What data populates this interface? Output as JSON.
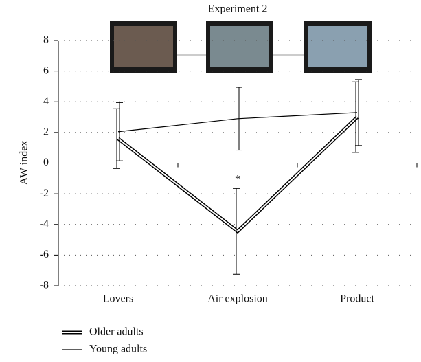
{
  "chart_data": {
    "type": "line",
    "title": "Experiment 2",
    "y_label": "AW index",
    "categories": [
      "Lovers",
      "Air explosion",
      "Product"
    ],
    "series": [
      {
        "name": "Older adults",
        "color": "#000000",
        "values": [
          1.6,
          -4.45,
          3.0
        ],
        "errors": [
          1.95,
          2.8,
          2.3
        ]
      },
      {
        "name": "Young adults",
        "color": "#000000",
        "values": [
          2.05,
          2.9,
          3.3
        ],
        "errors": [
          1.9,
          2.05,
          2.15
        ]
      }
    ],
    "annotations": [
      {
        "text": "*",
        "category": 1,
        "y": -0.9
      }
    ],
    "ylim": [
      -8,
      8
    ],
    "yticks": [
      -8,
      -6,
      -4,
      -2,
      0,
      2,
      4,
      6,
      8
    ],
    "grid": true
  }
}
